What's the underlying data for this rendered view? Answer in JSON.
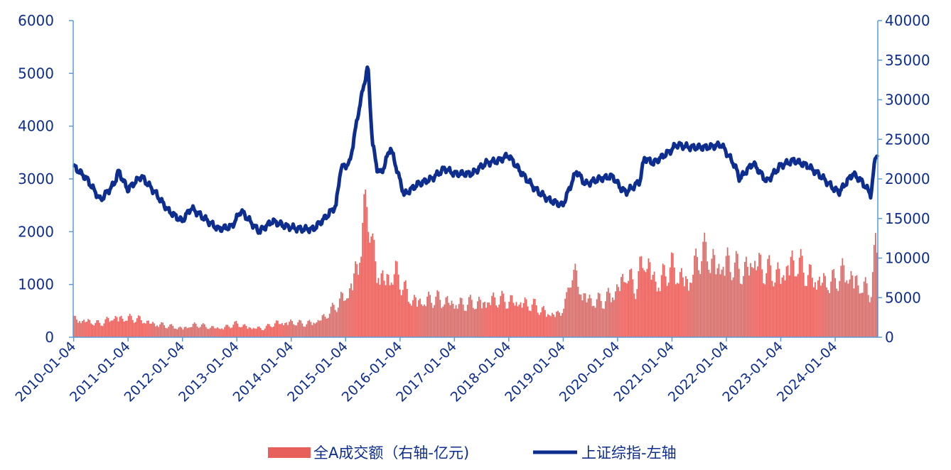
{
  "chart_data": {
    "type": "bar+line",
    "title": "",
    "xlabel": "",
    "ylabel": "",
    "y2label": "",
    "ylim": [
      0,
      6000
    ],
    "y2lim": [
      0,
      40000
    ],
    "yticks": [
      "0",
      "1000",
      "2000",
      "3000",
      "4000",
      "5000",
      "6000"
    ],
    "y2ticks": [
      "0",
      "5000",
      "10000",
      "15000",
      "20000",
      "25000",
      "30000",
      "35000",
      "40000"
    ],
    "xticks": [
      "2010-01-04",
      "2011-01-04",
      "2012-01-04",
      "2013-01-04",
      "2014-01-04",
      "2015-01-04",
      "2016-01-04",
      "2017-01-04",
      "2018-01-04",
      "2019-01-04",
      "2020-01-04",
      "2021-01-04",
      "2022-01-04",
      "2023-01-04",
      "2024-01-04"
    ],
    "grid": false,
    "legend_position": "bottom-center",
    "colors": {
      "bar": "#e8605c",
      "line": "#0d2d8f",
      "axis": "#5b9bd5",
      "text": "#0d2d8f"
    },
    "series": [
      {
        "name": "全A成交额（右轴-亿元)",
        "kind": "bar",
        "axis": "right",
        "x": [
          "2010-01",
          "2010-04",
          "2010-07",
          "2010-10",
          "2011-01",
          "2011-04",
          "2011-07",
          "2011-10",
          "2012-01",
          "2012-04",
          "2012-07",
          "2012-10",
          "2013-01",
          "2013-04",
          "2013-07",
          "2013-10",
          "2014-01",
          "2014-04",
          "2014-07",
          "2014-10",
          "2014-12",
          "2015-02",
          "2015-04",
          "2015-05",
          "2015-06",
          "2015-07",
          "2015-08",
          "2015-10",
          "2015-12",
          "2016-03",
          "2016-06",
          "2016-09",
          "2016-12",
          "2017-03",
          "2017-06",
          "2017-09",
          "2017-12",
          "2018-03",
          "2018-06",
          "2018-09",
          "2018-12",
          "2019-02",
          "2019-03",
          "2019-05",
          "2019-07",
          "2019-10",
          "2020-01",
          "2020-03",
          "2020-05",
          "2020-07",
          "2020-08",
          "2020-10",
          "2021-01",
          "2021-03",
          "2021-05",
          "2021-07",
          "2021-09",
          "2021-11",
          "2022-01",
          "2022-03",
          "2022-05",
          "2022-07",
          "2022-10",
          "2023-01",
          "2023-03",
          "2023-05",
          "2023-07",
          "2023-10",
          "2024-01",
          "2024-03",
          "2024-05",
          "2024-07",
          "2024-09",
          "2024-10"
        ],
        "values": [
          2500,
          2300,
          1800,
          2800,
          2600,
          2400,
          1900,
          1500,
          1300,
          1700,
          1400,
          1300,
          1800,
          1400,
          1200,
          2000,
          2100,
          1800,
          2300,
          3600,
          5000,
          6500,
          11000,
          15000,
          19000,
          12000,
          9500,
          8000,
          9000,
          5500,
          5000,
          5200,
          5000,
          4500,
          4700,
          5200,
          5000,
          5000,
          4500,
          3500,
          3200,
          5000,
          9500,
          6500,
          5200,
          4800,
          6800,
          9000,
          6500,
          11000,
          10000,
          7500,
          9500,
          8500,
          8000,
          11000,
          11500,
          10000,
          10500,
          9500,
          9000,
          11000,
          9000,
          8500,
          10500,
          10000,
          8500,
          8000,
          7500,
          9000,
          8500,
          7000,
          6000,
          12000
        ]
      },
      {
        "name": "上证综指-左轴",
        "kind": "line",
        "axis": "left",
        "x": [
          "2010-01",
          "2010-04",
          "2010-07",
          "2010-10",
          "2010-11",
          "2011-01",
          "2011-04",
          "2011-07",
          "2011-10",
          "2012-01",
          "2012-03",
          "2012-06",
          "2012-09",
          "2012-12",
          "2013-02",
          "2013-06",
          "2013-09",
          "2013-12",
          "2014-03",
          "2014-06",
          "2014-09",
          "2014-11",
          "2014-12",
          "2015-02",
          "2015-04",
          "2015-06",
          "2015-07",
          "2015-08",
          "2015-09",
          "2015-11",
          "2016-01",
          "2016-02",
          "2016-05",
          "2016-08",
          "2016-11",
          "2017-01",
          "2017-05",
          "2017-08",
          "2017-11",
          "2018-01",
          "2018-04",
          "2018-07",
          "2018-10",
          "2019-01",
          "2019-04",
          "2019-06",
          "2019-09",
          "2019-12",
          "2020-02",
          "2020-03",
          "2020-06",
          "2020-07",
          "2020-09",
          "2021-01",
          "2021-02",
          "2021-05",
          "2021-09",
          "2021-12",
          "2022-03",
          "2022-04",
          "2022-07",
          "2022-10",
          "2023-01",
          "2023-04",
          "2023-07",
          "2023-10",
          "2024-01",
          "2024-02",
          "2024-05",
          "2024-07",
          "2024-09",
          "2024-10"
        ],
        "values": [
          3250,
          3000,
          2600,
          2900,
          3150,
          2800,
          3050,
          2750,
          2400,
          2200,
          2450,
          2250,
          2050,
          2100,
          2400,
          2000,
          2200,
          2100,
          2050,
          2050,
          2300,
          2500,
          3200,
          3300,
          4300,
          5150,
          3700,
          3200,
          3100,
          3600,
          3000,
          2700,
          2900,
          3000,
          3200,
          3100,
          3100,
          3300,
          3350,
          3450,
          3100,
          2800,
          2600,
          2500,
          3150,
          2900,
          3000,
          3050,
          2800,
          2750,
          2950,
          3400,
          3300,
          3550,
          3650,
          3600,
          3600,
          3650,
          3250,
          3000,
          3300,
          2950,
          3250,
          3350,
          3250,
          3050,
          2800,
          2750,
          3100,
          2950,
          2700,
          3450
        ]
      }
    ]
  }
}
